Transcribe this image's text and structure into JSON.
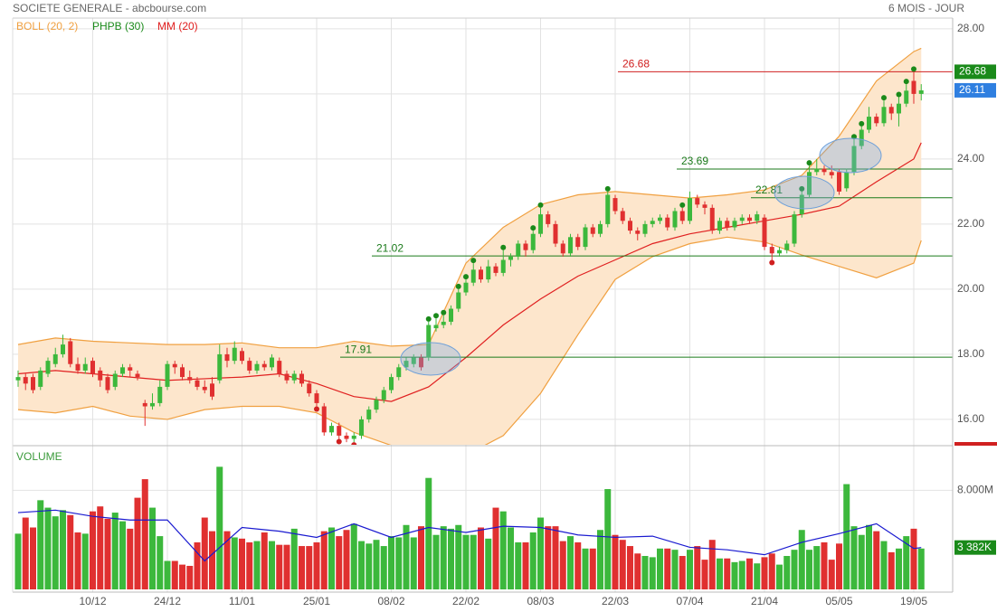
{
  "chart_data": {
    "type": "candlestick",
    "title": "SOCIETE GENERALE - abcbourse.com",
    "period": "6 MOIS - JOUR",
    "up_color": "#3cb83c",
    "down_color": "#e03030",
    "grid": true,
    "categories": [
      null,
      null,
      null,
      null,
      null,
      null,
      null,
      null,
      null,
      null,
      "10/12",
      null,
      null,
      null,
      null,
      null,
      null,
      null,
      null,
      null,
      "24/12",
      null,
      null,
      null,
      null,
      null,
      null,
      null,
      null,
      null,
      "11/01",
      null,
      null,
      null,
      null,
      null,
      null,
      null,
      null,
      null,
      "25/01",
      null,
      null,
      null,
      null,
      null,
      null,
      null,
      null,
      null,
      "08/02",
      null,
      null,
      null,
      null,
      null,
      null,
      null,
      null,
      null,
      "22/02",
      null,
      null,
      null,
      null,
      null,
      null,
      null,
      null,
      null,
      "08/03",
      null,
      null,
      null,
      null,
      null,
      null,
      null,
      null,
      null,
      "22/03",
      null,
      null,
      null,
      null,
      null,
      null,
      null,
      null,
      null,
      "07/04",
      null,
      null,
      null,
      null,
      null,
      null,
      null,
      null,
      null,
      "21/04",
      null,
      null,
      null,
      null,
      null,
      null,
      null,
      null,
      null,
      "05/05",
      null,
      null,
      null,
      null,
      null,
      null,
      null,
      null,
      null,
      "19/05",
      null
    ],
    "candles": [
      [
        17.2,
        17.5,
        17.0,
        17.3
      ],
      [
        17.3,
        17.4,
        16.9,
        17.1
      ],
      [
        17.3,
        17.4,
        16.8,
        16.9
      ],
      [
        17.0,
        17.6,
        16.9,
        17.5
      ],
      [
        17.4,
        17.9,
        17.3,
        17.8
      ],
      [
        17.7,
        18.2,
        17.6,
        18.0
      ],
      [
        18.0,
        18.6,
        17.9,
        18.3
      ],
      [
        18.4,
        18.5,
        17.6,
        17.7
      ],
      [
        17.7,
        17.9,
        17.4,
        17.5
      ],
      [
        17.5,
        17.9,
        17.4,
        17.7
      ],
      [
        17.8,
        17.9,
        17.3,
        17.4
      ],
      [
        17.5,
        17.6,
        17.0,
        17.2
      ],
      [
        17.3,
        17.4,
        16.8,
        16.9
      ],
      [
        17.0,
        17.5,
        16.9,
        17.4
      ],
      [
        17.4,
        17.7,
        17.3,
        17.6
      ],
      [
        17.6,
        17.7,
        17.3,
        17.5
      ],
      [
        17.4,
        17.5,
        17.2,
        17.3
      ],
      [
        16.5,
        16.6,
        15.8,
        16.4
      ],
      [
        16.4,
        16.8,
        16.3,
        16.5
      ],
      [
        16.5,
        17.2,
        16.4,
        17.0
      ],
      [
        17.0,
        17.8,
        16.9,
        17.7
      ],
      [
        17.7,
        17.8,
        17.4,
        17.6
      ],
      [
        17.6,
        17.7,
        17.2,
        17.3
      ],
      [
        17.3,
        17.5,
        17.1,
        17.2
      ],
      [
        17.2,
        17.3,
        16.9,
        17.0
      ],
      [
        17.0,
        17.2,
        16.8,
        16.9
      ],
      [
        17.1,
        17.3,
        16.6,
        16.7
      ],
      [
        17.2,
        18.3,
        17.1,
        18.0
      ],
      [
        18.0,
        18.2,
        17.6,
        17.8
      ],
      [
        17.8,
        18.4,
        17.7,
        18.2
      ],
      [
        18.1,
        18.2,
        17.7,
        17.8
      ],
      [
        17.8,
        17.9,
        17.4,
        17.5
      ],
      [
        17.5,
        17.8,
        17.4,
        17.7
      ],
      [
        17.7,
        17.8,
        17.5,
        17.6
      ],
      [
        17.6,
        18.0,
        17.5,
        17.9
      ],
      [
        17.8,
        17.9,
        17.3,
        17.4
      ],
      [
        17.4,
        17.5,
        17.1,
        17.2
      ],
      [
        17.2,
        17.5,
        17.1,
        17.4
      ],
      [
        17.4,
        17.5,
        17.0,
        17.1
      ],
      [
        17.1,
        17.2,
        16.7,
        16.8
      ],
      [
        16.8,
        16.9,
        16.4,
        16.5
      ],
      [
        16.4,
        16.5,
        15.5,
        15.6
      ],
      [
        15.6,
        15.9,
        15.5,
        15.8
      ],
      [
        15.8,
        15.9,
        15.4,
        15.5
      ],
      [
        15.5,
        15.6,
        15.3,
        15.4
      ],
      [
        15.4,
        15.6,
        15.3,
        15.5
      ],
      [
        15.5,
        16.1,
        15.4,
        16.0
      ],
      [
        16.0,
        16.4,
        15.9,
        16.3
      ],
      [
        16.3,
        16.7,
        16.2,
        16.6
      ],
      [
        16.6,
        17.0,
        16.5,
        16.9
      ],
      [
        16.9,
        17.4,
        16.8,
        17.3
      ],
      [
        17.3,
        17.7,
        17.2,
        17.6
      ],
      [
        17.6,
        17.9,
        17.5,
        17.8
      ],
      [
        17.7,
        18.0,
        17.6,
        17.9
      ],
      [
        17.9,
        18.0,
        17.5,
        17.6
      ],
      [
        17.9,
        19.0,
        17.8,
        18.9
      ],
      [
        18.8,
        19.1,
        18.7,
        18.9
      ],
      [
        18.9,
        19.2,
        18.8,
        19.0
      ],
      [
        19.0,
        19.5,
        18.9,
        19.4
      ],
      [
        19.4,
        20.0,
        19.3,
        19.9
      ],
      [
        19.9,
        20.3,
        19.8,
        20.2
      ],
      [
        20.2,
        20.8,
        20.1,
        20.6
      ],
      [
        20.6,
        20.7,
        20.2,
        20.3
      ],
      [
        20.3,
        20.9,
        20.2,
        20.7
      ],
      [
        20.7,
        20.8,
        20.4,
        20.5
      ],
      [
        20.5,
        21.2,
        20.4,
        20.9
      ],
      [
        20.9,
        21.1,
        20.7,
        21.0
      ],
      [
        21.0,
        21.5,
        20.9,
        21.4
      ],
      [
        21.4,
        21.5,
        21.0,
        21.2
      ],
      [
        21.2,
        21.8,
        21.1,
        21.7
      ],
      [
        21.7,
        22.5,
        21.6,
        22.3
      ],
      [
        22.3,
        22.4,
        21.9,
        22.0
      ],
      [
        22.0,
        22.1,
        21.3,
        21.4
      ],
      [
        21.4,
        21.5,
        21.0,
        21.1
      ],
      [
        21.1,
        21.7,
        21.0,
        21.6
      ],
      [
        21.6,
        21.7,
        21.2,
        21.3
      ],
      [
        21.3,
        22.0,
        21.2,
        21.9
      ],
      [
        21.9,
        22.0,
        21.6,
        21.7
      ],
      [
        21.7,
        22.1,
        21.6,
        22.0
      ],
      [
        22.0,
        23.0,
        21.9,
        22.9
      ],
      [
        22.8,
        22.9,
        22.3,
        22.4
      ],
      [
        22.4,
        22.5,
        22.0,
        22.1
      ],
      [
        22.1,
        22.2,
        21.7,
        21.8
      ],
      [
        21.8,
        21.9,
        21.5,
        21.7
      ],
      [
        21.7,
        22.1,
        21.6,
        22.0
      ],
      [
        22.0,
        22.2,
        21.9,
        22.1
      ],
      [
        22.1,
        22.3,
        22.0,
        22.2
      ],
      [
        22.2,
        22.3,
        21.8,
        21.9
      ],
      [
        21.9,
        22.5,
        21.8,
        22.4
      ],
      [
        22.4,
        22.5,
        22.0,
        22.1
      ],
      [
        22.1,
        23.0,
        22.0,
        22.8
      ],
      [
        22.8,
        22.9,
        22.5,
        22.6
      ],
      [
        22.6,
        22.7,
        22.3,
        22.5
      ],
      [
        22.5,
        22.6,
        21.7,
        21.8
      ],
      [
        21.8,
        22.2,
        21.7,
        22.1
      ],
      [
        22.1,
        22.2,
        21.8,
        21.9
      ],
      [
        21.9,
        22.2,
        21.8,
        22.1
      ],
      [
        22.1,
        22.3,
        22.0,
        22.2
      ],
      [
        22.2,
        22.3,
        22.0,
        22.1
      ],
      [
        22.1,
        22.4,
        22.0,
        22.3
      ],
      [
        22.2,
        22.3,
        21.2,
        21.3
      ],
      [
        21.3,
        21.4,
        20.9,
        21.1
      ],
      [
        21.1,
        21.3,
        21.0,
        21.2
      ],
      [
        21.2,
        21.5,
        21.1,
        21.4
      ],
      [
        21.4,
        22.4,
        21.3,
        22.3
      ],
      [
        22.3,
        23.0,
        22.2,
        22.9
      ],
      [
        22.9,
        23.8,
        22.8,
        23.6
      ],
      [
        23.6,
        24.0,
        23.5,
        23.7
      ],
      [
        23.7,
        23.8,
        23.5,
        23.6
      ],
      [
        23.6,
        23.8,
        23.4,
        23.5
      ],
      [
        23.6,
        23.7,
        22.9,
        23.0
      ],
      [
        23.1,
        23.7,
        23.0,
        23.6
      ],
      [
        23.6,
        24.6,
        23.5,
        24.4
      ],
      [
        24.4,
        25.0,
        24.3,
        24.9
      ],
      [
        24.9,
        25.6,
        24.8,
        25.3
      ],
      [
        25.3,
        25.4,
        25.0,
        25.1
      ],
      [
        25.1,
        25.8,
        25.0,
        25.6
      ],
      [
        25.6,
        25.7,
        25.2,
        25.4
      ],
      [
        25.4,
        25.9,
        25.0,
        25.7
      ],
      [
        25.7,
        26.3,
        25.6,
        26.1
      ],
      [
        26.4,
        26.68,
        25.7,
        26.0
      ],
      [
        26.0,
        26.3,
        25.8,
        26.11
      ]
    ],
    "ylim": [
      15.22,
      28.33
    ],
    "yticks": [
      {
        "value": 16,
        "label": "16.00"
      },
      {
        "value": 18,
        "label": "18.00"
      },
      {
        "value": 20,
        "label": "20.00"
      },
      {
        "value": 22,
        "label": "22.00"
      },
      {
        "value": 24,
        "label": "24.00"
      },
      {
        "value": 26,
        "label": "26.00"
      },
      {
        "value": 28,
        "label": "28.00"
      }
    ],
    "indicators": [
      {
        "name": "BOLL (20, 2)",
        "color": "#f0a040",
        "fill": "#fde6cc",
        "x": [
          0,
          5,
          10,
          15,
          20,
          25,
          30,
          35,
          40,
          45,
          50,
          55,
          60,
          65,
          70,
          75,
          80,
          85,
          90,
          95,
          100,
          105,
          110,
          115,
          120,
          121
        ],
        "upper": [
          18.3,
          18.5,
          18.4,
          18.35,
          18.3,
          18.3,
          18.35,
          18.2,
          18.2,
          18.4,
          18.25,
          18.3,
          20.8,
          21.9,
          22.6,
          22.9,
          23.0,
          22.9,
          22.8,
          22.9,
          23.05,
          23.5,
          24.7,
          26.4,
          27.3,
          27.4
        ],
        "lower": [
          16.3,
          16.2,
          16.4,
          16.1,
          16.0,
          16.3,
          16.4,
          16.4,
          16.2,
          15.6,
          15.2,
          14.9,
          14.9,
          15.5,
          16.8,
          18.6,
          20.3,
          21.0,
          21.4,
          21.6,
          21.45,
          21.05,
          20.7,
          20.35,
          20.8,
          21.5
        ]
      },
      {
        "name": "PHPB (30)",
        "color": "#1a8a1a",
        "low_color": "#d02020",
        "high_pivots": [
          55,
          56,
          57,
          59,
          60,
          61,
          65,
          69,
          70,
          79,
          89,
          105,
          106,
          112,
          113,
          116,
          118,
          119,
          120
        ],
        "low_pivots": [
          40,
          43,
          45,
          101
        ]
      },
      {
        "name": "MM (20)",
        "color": "#e02020",
        "x": [
          0,
          5,
          10,
          15,
          20,
          25,
          30,
          35,
          40,
          45,
          50,
          55,
          60,
          65,
          70,
          75,
          80,
          85,
          90,
          95,
          100,
          105,
          110,
          115,
          120,
          121
        ],
        "values": [
          17.4,
          17.5,
          17.4,
          17.3,
          17.2,
          17.25,
          17.3,
          17.4,
          17.1,
          16.7,
          16.55,
          17.0,
          17.9,
          18.9,
          19.7,
          20.4,
          20.9,
          21.4,
          21.7,
          21.9,
          22.1,
          22.3,
          22.55,
          23.3,
          24.0,
          24.5
        ]
      }
    ],
    "levels": [
      {
        "value": 26.68,
        "color": "#d02020"
      },
      {
        "value": 23.69,
        "color": "#1a7a1a"
      },
      {
        "value": 22.81,
        "color": "#1a7a1a"
      },
      {
        "value": 21.02,
        "color": "#1a7a1a"
      },
      {
        "value": 17.91,
        "color": "#1a7a1a"
      }
    ],
    "price_labels": [
      {
        "value": 26.68,
        "color": "#1a8a1a"
      },
      {
        "value": 26.11,
        "color": "#2f7fe0"
      }
    ],
    "volume": {
      "title": "VOLUME",
      "values": [
        4500,
        5800,
        5000,
        7200,
        6600,
        5900,
        6400,
        6000,
        4600,
        4500,
        6300,
        6700,
        5700,
        6200,
        5500,
        4900,
        7400,
        8900,
        6600,
        4300,
        2300,
        2300,
        2000,
        1900,
        3800,
        5800,
        4700,
        9900,
        4700,
        4200,
        4100,
        3800,
        3900,
        4600,
        3900,
        3600,
        3600,
        4900,
        3500,
        3500,
        3800,
        4700,
        5000,
        4300,
        4800,
        5300,
        3900,
        3700,
        4000,
        3500,
        4300,
        4200,
        5200,
        4200,
        5100,
        9000,
        4400,
        5100,
        4900,
        5200,
        4400,
        4400,
        5000,
        4100,
        6600,
        6300,
        5000,
        3800,
        3800,
        4600,
        5800,
        5100,
        5100,
        3900,
        4300,
        3800,
        3300,
        3300,
        4800,
        8100,
        4400,
        4000,
        3500,
        2900,
        2700,
        2600,
        3300,
        3300,
        3200,
        2700,
        3200,
        3500,
        2400,
        4000,
        2500,
        2500,
        2200,
        2300,
        2500,
        2100,
        2600,
        2900,
        2000,
        2700,
        3200,
        4800,
        3200,
        3500,
        3800,
        2400,
        3700,
        8500,
        5100,
        4400,
        5200,
        4700,
        3900,
        3000,
        3300,
        4300,
        4900,
        3300
      ],
      "ylim": [
        0,
        10000
      ],
      "yticks": [
        {
          "value": 8000,
          "label": "8.000M"
        }
      ],
      "ma": {
        "color": "#1a1ad0",
        "x": [
          0,
          5,
          10,
          15,
          20,
          25,
          30,
          35,
          40,
          45,
          50,
          55,
          60,
          65,
          70,
          75,
          80,
          85,
          90,
          95,
          100,
          105,
          110,
          115,
          120,
          121
        ],
        "values": [
          6200,
          6400,
          5900,
          5600,
          5600,
          2300,
          5000,
          4700,
          4200,
          5300,
          4200,
          5000,
          4600,
          5100,
          5000,
          4400,
          4200,
          4300,
          3400,
          3200,
          2800,
          3800,
          4500,
          5300,
          3300,
          3382
        ]
      },
      "last": {
        "value": 3382,
        "label": "3 382K",
        "color": "#1a8a1a"
      }
    }
  }
}
